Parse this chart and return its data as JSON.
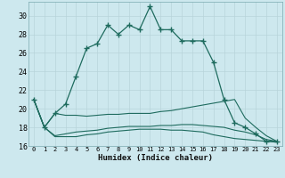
{
  "xlabel": "Humidex (Indice chaleur)",
  "bg_color": "#cde8ee",
  "grid_color": "#b8d4da",
  "line_color": "#1e6b5e",
  "xlim": [
    -0.5,
    23.5
  ],
  "ylim": [
    16,
    31.5
  ],
  "yticks": [
    16,
    18,
    20,
    22,
    24,
    26,
    28,
    30
  ],
  "xticks": [
    0,
    1,
    2,
    3,
    4,
    5,
    6,
    7,
    8,
    9,
    10,
    11,
    12,
    13,
    14,
    15,
    16,
    17,
    18,
    19,
    20,
    21,
    22,
    23
  ],
  "line1_x": [
    0,
    1,
    2,
    3,
    4,
    5,
    6,
    7,
    8,
    9,
    10,
    11,
    12,
    13,
    14,
    15,
    16,
    17,
    18,
    19,
    20,
    21,
    22,
    23
  ],
  "line1_y": [
    21.0,
    18.0,
    19.5,
    20.5,
    23.5,
    26.5,
    27.0,
    29.0,
    28.0,
    29.0,
    28.5,
    31.0,
    28.5,
    28.5,
    27.3,
    27.3,
    27.3,
    25.0,
    21.0,
    18.5,
    18.0,
    17.3,
    16.5,
    16.5
  ],
  "line2_x": [
    0,
    1,
    2,
    3,
    4,
    5,
    6,
    7,
    8,
    9,
    10,
    11,
    12,
    13,
    14,
    15,
    16,
    17,
    18,
    19,
    20,
    21,
    22,
    23
  ],
  "line2_y": [
    21.0,
    18.0,
    19.5,
    19.3,
    19.3,
    19.2,
    19.3,
    19.4,
    19.4,
    19.5,
    19.5,
    19.5,
    19.7,
    19.8,
    20.0,
    20.2,
    20.4,
    20.6,
    20.8,
    21.0,
    19.0,
    18.0,
    17.1,
    16.5
  ],
  "line3_x": [
    0,
    1,
    2,
    3,
    4,
    5,
    6,
    7,
    8,
    9,
    10,
    11,
    12,
    13,
    14,
    15,
    16,
    17,
    18,
    19,
    20,
    21,
    22,
    23
  ],
  "line3_y": [
    21.0,
    18.0,
    17.1,
    17.3,
    17.5,
    17.6,
    17.7,
    17.9,
    18.0,
    18.1,
    18.1,
    18.1,
    18.2,
    18.2,
    18.3,
    18.3,
    18.2,
    18.1,
    18.0,
    17.7,
    17.5,
    17.2,
    16.7,
    16.5
  ],
  "line4_x": [
    0,
    1,
    2,
    3,
    4,
    5,
    6,
    7,
    8,
    9,
    10,
    11,
    12,
    13,
    14,
    15,
    16,
    17,
    18,
    19,
    20,
    21,
    22,
    23
  ],
  "line4_y": [
    21.0,
    18.0,
    17.0,
    17.0,
    17.0,
    17.2,
    17.3,
    17.5,
    17.6,
    17.7,
    17.8,
    17.8,
    17.8,
    17.7,
    17.7,
    17.6,
    17.5,
    17.2,
    17.0,
    16.8,
    16.7,
    16.6,
    16.5,
    16.4
  ]
}
